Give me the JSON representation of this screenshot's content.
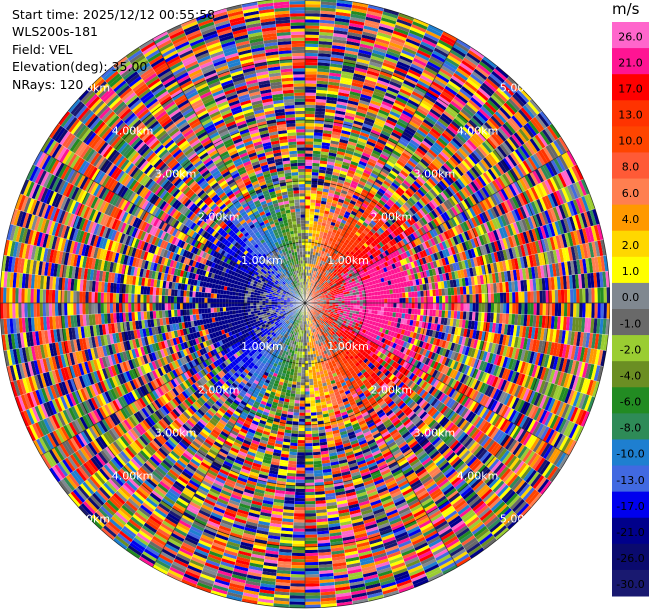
{
  "info": {
    "start_time": "Start time: 2025/12/12 00:55:58",
    "instrument": "WLS200s-181",
    "field": "Field: VEL",
    "elevation": "Elevation(deg): 35.00",
    "nrays": "NRays: 120"
  },
  "chart_data": {
    "type": "heatmap",
    "projection": "polar-ppi",
    "n_rays": 120,
    "max_range_km": 5.0,
    "ring_labels": [
      "1.00km",
      "2.00km",
      "3.00km",
      "4.00km",
      "5.00km"
    ],
    "ring_ranges_km": [
      1,
      2,
      3,
      4,
      5
    ],
    "colorbar": {
      "unit": "m/s",
      "tick_labels": [
        "26.0",
        "21.0",
        "17.0",
        "13.0",
        "10.0",
        "8.0",
        "6.0",
        "4.0",
        "2.0",
        "1.0",
        "0.0",
        "-1.0",
        "-2.0",
        "-4.0",
        "-6.0",
        "-8.0",
        "-10.0",
        "-13.0",
        "-17.0",
        "-21.0",
        "-26.0",
        "-30.0"
      ],
      "colors": [
        "#ff66cc",
        "#ff1493",
        "#ff0000",
        "#ff3300",
        "#ff4500",
        "#ff5a36",
        "#ff7f50",
        "#ff9900",
        "#ffd700",
        "#ffff00",
        "#808890",
        "#696969",
        "#9acd32",
        "#6b8e23",
        "#228b22",
        "#2e8b57",
        "#1e7fd0",
        "#4169e1",
        "#0000ee",
        "#00008b",
        "#0a0a6e",
        "#191970"
      ]
    }
  }
}
